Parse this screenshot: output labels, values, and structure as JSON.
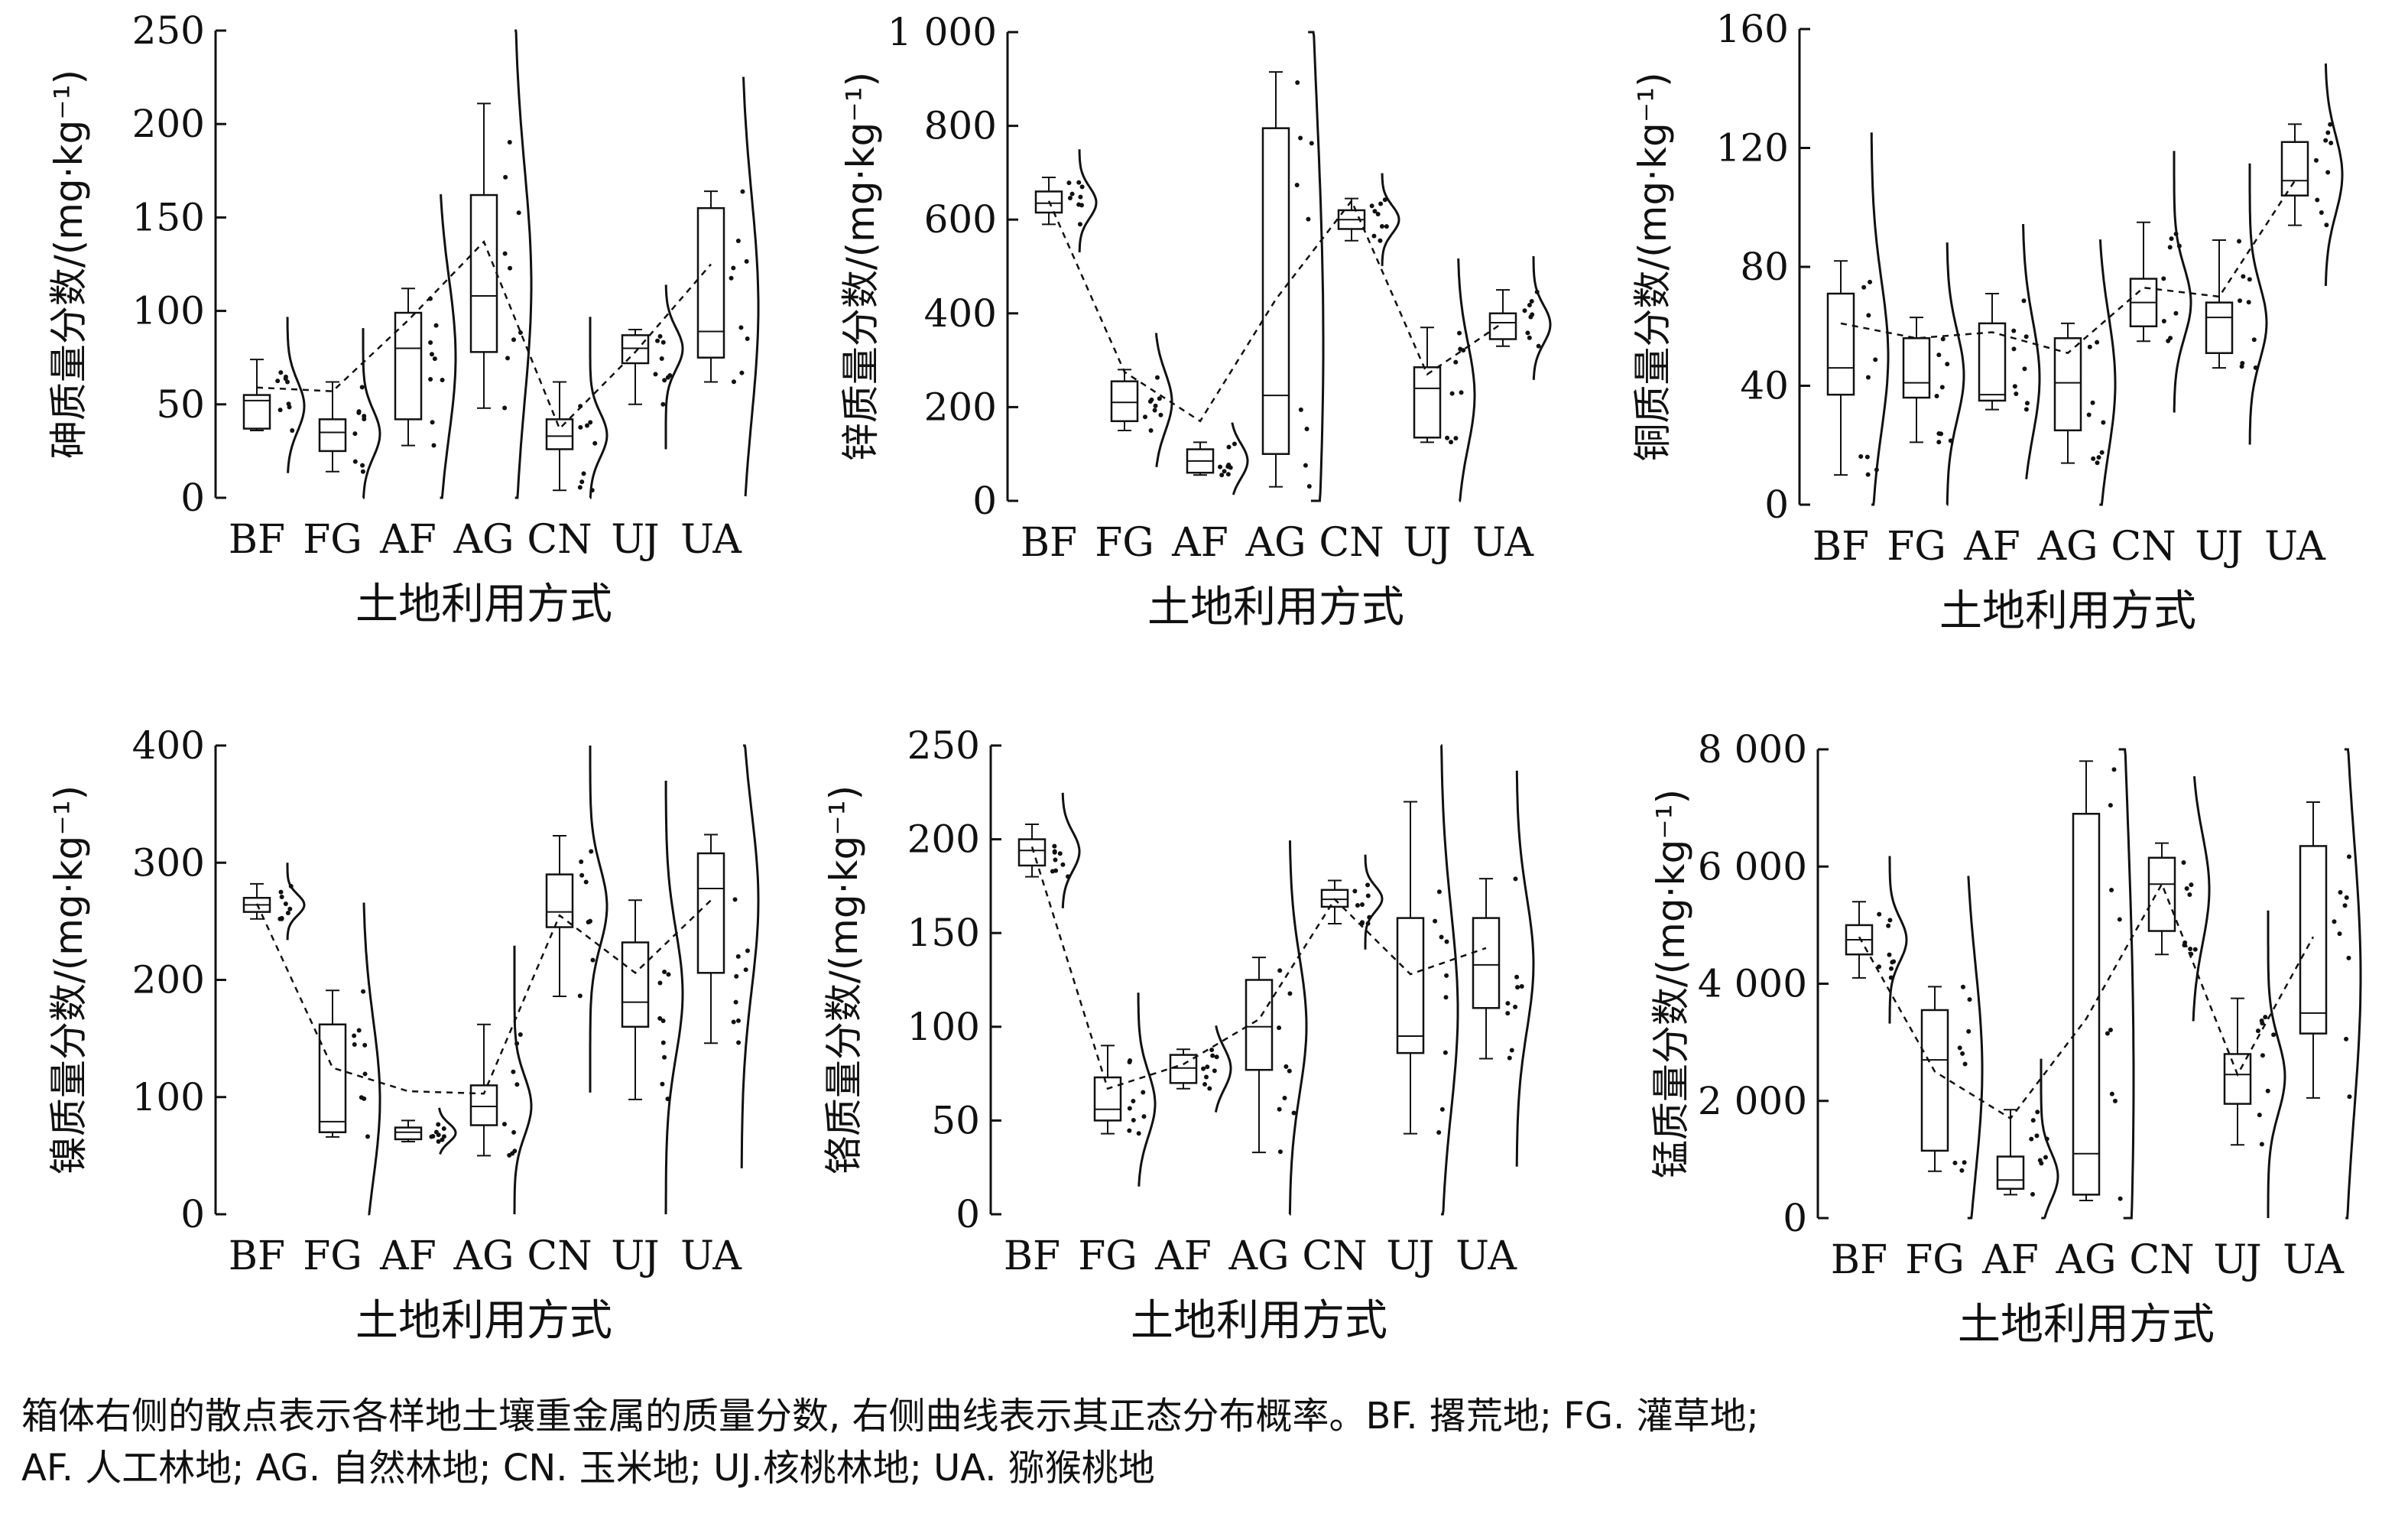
{
  "caption": {
    "line1": "箱体右侧的散点表示各样地土壤重金属的质量分数, 右侧曲线表示其正态分布概率。BF. 撂荒地; FG. 灌草地;",
    "line2": "AF. 人工林地; AG. 自然林地; CN. 玉米地; UJ.核桃林地; UA. 猕猴桃地"
  },
  "chart_data": [
    {
      "type": "box",
      "ylabel": "砷质量分数/(mg·kg⁻¹)",
      "xlabel": "土地利用方式",
      "ylim": [
        0,
        250
      ],
      "yticks": [
        0,
        50,
        100,
        150,
        200,
        250
      ],
      "ytick_labels": [
        "0",
        "50",
        "100",
        "150",
        "200",
        "250"
      ],
      "categories": [
        "BF",
        "FG",
        "AF",
        "AG",
        "CN",
        "UJ",
        "UA"
      ],
      "boxes": [
        {
          "min": 36,
          "q1": 37,
          "median": 52,
          "q3": 55,
          "max": 74
        },
        {
          "min": 14,
          "q1": 25,
          "median": 35,
          "q3": 42,
          "max": 62
        },
        {
          "min": 28,
          "q1": 42,
          "median": 80,
          "q3": 99,
          "max": 112
        },
        {
          "min": 48,
          "q1": 78,
          "median": 108,
          "q3": 162,
          "max": 211
        },
        {
          "min": 4,
          "q1": 26,
          "median": 33,
          "q3": 42,
          "max": 62
        },
        {
          "min": 50,
          "q1": 72,
          "median": 80,
          "q3": 87,
          "max": 90
        },
        {
          "min": 62,
          "q1": 75,
          "median": 89,
          "q3": 155,
          "max": 164
        }
      ],
      "mean_line": [
        59,
        57,
        95,
        137,
        37,
        78,
        125
      ]
    },
    {
      "type": "box",
      "ylabel": "锌质量分数/(mg·kg⁻¹)",
      "xlabel": "土地利用方式",
      "ylim": [
        0,
        1000
      ],
      "yticks": [
        0,
        200,
        400,
        600,
        800,
        1000
      ],
      "ytick_labels": [
        "0",
        "200",
        "400",
        "600",
        "800",
        "1 000"
      ],
      "categories": [
        "BF",
        "FG",
        "AF",
        "AG",
        "CN",
        "UJ",
        "UA"
      ],
      "boxes": [
        {
          "min": 590,
          "q1": 615,
          "median": 635,
          "q3": 660,
          "max": 690
        },
        {
          "min": 150,
          "q1": 170,
          "median": 210,
          "q3": 255,
          "max": 280
        },
        {
          "min": 55,
          "q1": 60,
          "median": 85,
          "q3": 110,
          "max": 125
        },
        {
          "min": 30,
          "q1": 100,
          "median": 225,
          "q3": 795,
          "max": 915
        },
        {
          "min": 555,
          "q1": 580,
          "median": 600,
          "q3": 620,
          "max": 645
        },
        {
          "min": 125,
          "q1": 135,
          "median": 240,
          "q3": 285,
          "max": 370
        },
        {
          "min": 330,
          "q1": 345,
          "median": 380,
          "q3": 400,
          "max": 450
        }
      ],
      "mean_line": [
        640,
        275,
        170,
        430,
        640,
        270,
        380
      ]
    },
    {
      "type": "box",
      "ylabel": "铜质量分数/(mg·kg⁻¹)",
      "xlabel": "土地利用方式",
      "ylim": [
        0,
        160
      ],
      "yticks": [
        0,
        40,
        80,
        120,
        160
      ],
      "ytick_labels": [
        "0",
        "40",
        "80",
        "120",
        "160"
      ],
      "categories": [
        "BF",
        "FG",
        "AF",
        "AG",
        "CN",
        "UJ",
        "UA"
      ],
      "boxes": [
        {
          "min": 10,
          "q1": 37,
          "median": 46,
          "q3": 71,
          "max": 82
        },
        {
          "min": 21,
          "q1": 36,
          "median": 41,
          "q3": 56,
          "max": 63
        },
        {
          "min": 32,
          "q1": 35,
          "median": 37,
          "q3": 61,
          "max": 71
        },
        {
          "min": 14,
          "q1": 25,
          "median": 41,
          "q3": 56,
          "max": 61
        },
        {
          "min": 55,
          "q1": 60,
          "median": 68,
          "q3": 76,
          "max": 95
        },
        {
          "min": 46,
          "q1": 51,
          "median": 63,
          "q3": 68,
          "max": 89
        },
        {
          "min": 94,
          "q1": 104,
          "median": 109,
          "q3": 122,
          "max": 128
        }
      ],
      "mean_line": [
        61,
        56,
        58,
        51,
        73,
        70,
        109
      ]
    },
    {
      "type": "box",
      "ylabel": "镍质量分数/(mg·kg⁻¹)",
      "xlabel": "土地利用方式",
      "ylim": [
        0,
        400
      ],
      "yticks": [
        0,
        100,
        200,
        300,
        400
      ],
      "ytick_labels": [
        "0",
        "100",
        "200",
        "300",
        "400"
      ],
      "categories": [
        "BF",
        "FG",
        "AF",
        "AG",
        "CN",
        "UJ",
        "UA"
      ],
      "boxes": [
        {
          "min": 252,
          "q1": 258,
          "median": 264,
          "q3": 270,
          "max": 282
        },
        {
          "min": 66,
          "q1": 70,
          "median": 79,
          "q3": 162,
          "max": 191
        },
        {
          "min": 62,
          "q1": 64,
          "median": 70,
          "q3": 74,
          "max": 80
        },
        {
          "min": 50,
          "q1": 76,
          "median": 92,
          "q3": 110,
          "max": 162
        },
        {
          "min": 186,
          "q1": 245,
          "median": 258,
          "q3": 290,
          "max": 323
        },
        {
          "min": 98,
          "q1": 160,
          "median": 181,
          "q3": 232,
          "max": 268
        },
        {
          "min": 146,
          "q1": 206,
          "median": 278,
          "q3": 308,
          "max": 324
        }
      ],
      "mean_line": [
        265,
        125,
        105,
        103,
        255,
        206,
        268
      ]
    },
    {
      "type": "box",
      "ylabel": "铬质量分数/(mg·kg⁻¹)",
      "xlabel": "土地利用方式",
      "ylim": [
        0,
        250
      ],
      "yticks": [
        0,
        50,
        100,
        150,
        200,
        250
      ],
      "ytick_labels": [
        "0",
        "50",
        "100",
        "150",
        "200",
        "250"
      ],
      "categories": [
        "BF",
        "FG",
        "AF",
        "AG",
        "CN",
        "UJ",
        "UA"
      ],
      "boxes": [
        {
          "min": 180,
          "q1": 186,
          "median": 194,
          "q3": 200,
          "max": 208
        },
        {
          "min": 43,
          "q1": 50,
          "median": 56,
          "q3": 73,
          "max": 90
        },
        {
          "min": 67,
          "q1": 70,
          "median": 78,
          "q3": 85,
          "max": 88
        },
        {
          "min": 33,
          "q1": 77,
          "median": 100,
          "q3": 125,
          "max": 137
        },
        {
          "min": 155,
          "q1": 164,
          "median": 168,
          "q3": 173,
          "max": 178
        },
        {
          "min": 43,
          "q1": 86,
          "median": 95,
          "q3": 158,
          "max": 220
        },
        {
          "min": 83,
          "q1": 110,
          "median": 133,
          "q3": 158,
          "max": 179
        }
      ],
      "mean_line": [
        196,
        67,
        80,
        104,
        168,
        128,
        142
      ]
    },
    {
      "type": "box",
      "ylabel": "锰质量分数/(mg·kg⁻¹)",
      "xlabel": "土地利用方式",
      "ylim": [
        0,
        8000
      ],
      "yticks": [
        0,
        2000,
        4000,
        6000,
        8000
      ],
      "ytick_labels": [
        "0",
        "2 000",
        "4 000",
        "6 000",
        "8 000"
      ],
      "categories": [
        "BF",
        "FG",
        "AF",
        "AG",
        "CN",
        "UJ",
        "UA"
      ],
      "boxes": [
        {
          "min": 4100,
          "q1": 4500,
          "median": 4750,
          "q3": 5000,
          "max": 5400
        },
        {
          "min": 800,
          "q1": 1150,
          "median": 2700,
          "q3": 3550,
          "max": 3950
        },
        {
          "min": 400,
          "q1": 500,
          "median": 650,
          "q3": 1050,
          "max": 1850
        },
        {
          "min": 300,
          "q1": 400,
          "median": 1100,
          "q3": 6900,
          "max": 7800
        },
        {
          "min": 4500,
          "q1": 4900,
          "median": 5700,
          "q3": 6150,
          "max": 6400
        },
        {
          "min": 1250,
          "q1": 1950,
          "median": 2450,
          "q3": 2800,
          "max": 3750
        },
        {
          "min": 2050,
          "q1": 3150,
          "median": 3500,
          "q3": 6350,
          "max": 7100
        }
      ],
      "mean_line": [
        4800,
        2500,
        1700,
        3400,
        5700,
        2450,
        4800
      ]
    }
  ]
}
